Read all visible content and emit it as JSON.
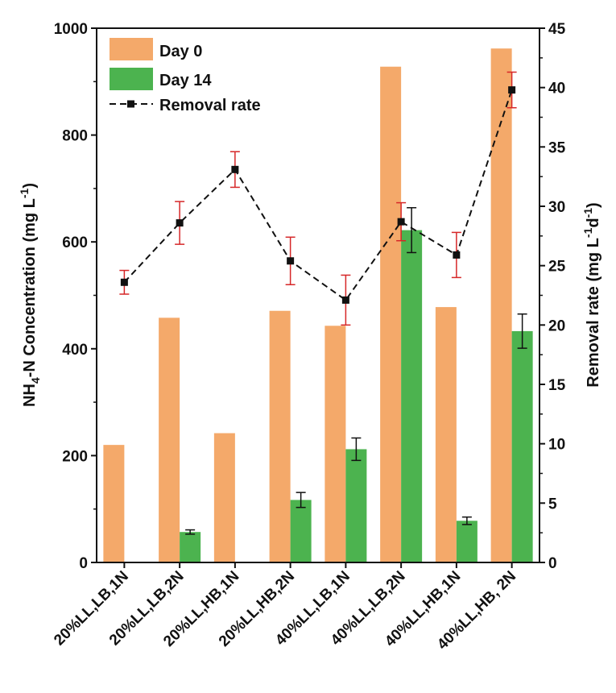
{
  "chart_data": {
    "type": "bar",
    "categories": [
      "20%LL,LB,1N",
      "20%LL,LB,2N",
      "20%LL,HB,1N",
      "20%LL,HB,2N",
      "40%LL,LB,1N",
      "40%LL,LB,2N",
      "40%LL,HB,1N",
      "40%LL,HB, 2N"
    ],
    "series": [
      {
        "name": "Day 0",
        "axis": "left",
        "color": "#F4A96A",
        "values": [
          220,
          458,
          242,
          471,
          443,
          928,
          478,
          962
        ],
        "errors": [
          0,
          0,
          0,
          0,
          0,
          0,
          0,
          0
        ]
      },
      {
        "name": "Day 14",
        "axis": "left",
        "color": "#4CB34F",
        "values": [
          0,
          57,
          0,
          117,
          212,
          622,
          78,
          433
        ],
        "errors": [
          0,
          4,
          0,
          14,
          21,
          42,
          7,
          32
        ]
      },
      {
        "name": "Removal rate",
        "axis": "right",
        "type": "line",
        "style": "dashed",
        "color": "#111111",
        "error_color": "#D62728",
        "values": [
          23.6,
          28.6,
          33.1,
          25.4,
          22.1,
          28.7,
          25.9,
          39.8
        ],
        "errors": [
          1.0,
          1.8,
          1.5,
          2.0,
          2.1,
          1.6,
          1.9,
          1.5
        ]
      }
    ],
    "ylabel_left_main": "NH",
    "ylabel_left_sub": "4",
    "ylabel_left_rest": "-N Concentration (mg L",
    "ylabel_left_sup": "-1",
    "ylabel_left_end": ")",
    "ylabel_right_main": "Removal rate (mg L",
    "ylabel_right_sup1": "-1",
    "ylabel_right_mid": "d",
    "ylabel_right_sup2": "-1",
    "ylabel_right_end": ")",
    "ylim_left": [
      0,
      1000
    ],
    "yticks_left": [
      "0",
      "200",
      "400",
      "600",
      "800",
      "1000"
    ],
    "ylim_right": [
      0,
      45
    ],
    "yticks_right": [
      "0",
      "5",
      "10",
      "15",
      "20",
      "25",
      "30",
      "35",
      "40",
      "45"
    ],
    "legend": {
      "position": "top-left",
      "entries": [
        "Day 0",
        "Day 14",
        "Removal rate"
      ]
    },
    "grid": false
  }
}
